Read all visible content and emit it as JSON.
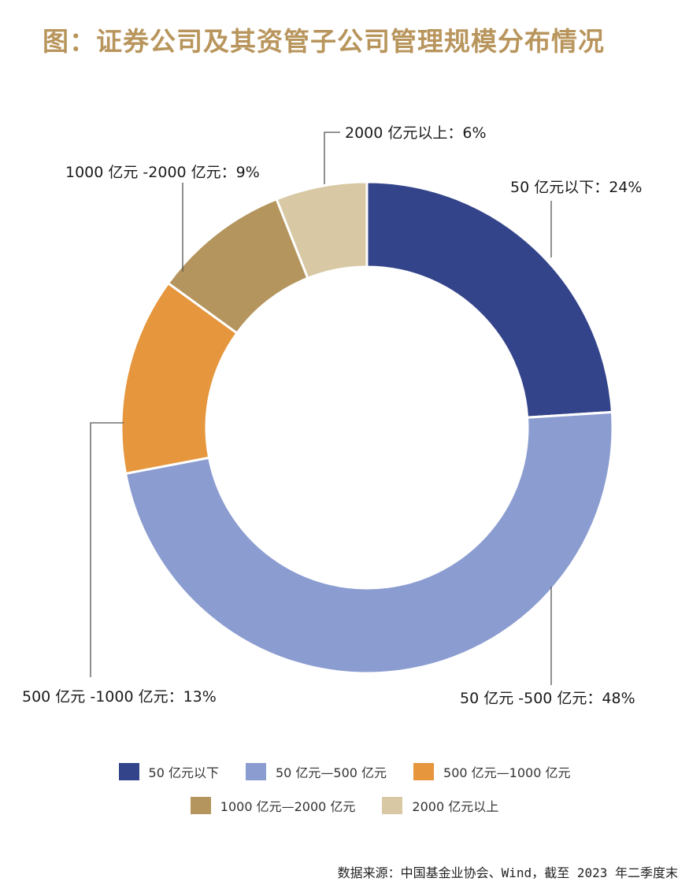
{
  "title": "图：证券公司及其资管子公司管理规模分布情况",
  "source": "数据来源：中国基金业协会、Wind，截至 2023 年二季度末",
  "chart_data": {
    "type": "pie",
    "donut": true,
    "slices": [
      {
        "legend": "50 亿元以下",
        "callout": "50 亿元以下：24%",
        "value": 24,
        "color": "#33448a"
      },
      {
        "legend": "50 亿元—500 亿元",
        "callout": "50 亿元 -500 亿元：48%",
        "value": 48,
        "color": "#8b9cd0"
      },
      {
        "legend": "500 亿元—1000 亿元",
        "callout": "500 亿元 -1000 亿元：13%",
        "value": 13,
        "color": "#e6963c"
      },
      {
        "legend": "1000 亿元—2000 亿元",
        "callout": "1000 亿元 -2000 亿元：9%",
        "value": 9,
        "color": "#b4955e"
      },
      {
        "legend": "2000 亿元以上",
        "callout": "2000 亿元以上：6%",
        "value": 6,
        "color": "#d8c8a4"
      }
    ],
    "legend_position": "bottom"
  }
}
